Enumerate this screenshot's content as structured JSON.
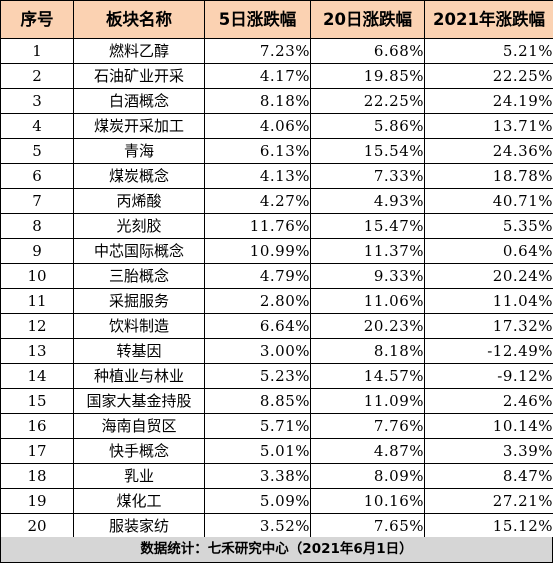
{
  "table": {
    "headers": [
      "序号",
      "板块名称",
      "5日涨跌幅",
      "20日涨跌幅",
      "2021年涨跌幅"
    ],
    "rows": [
      {
        "idx": "1",
        "name": "燃料乙醇",
        "d5": "7.23%",
        "d20": "6.68%",
        "ytd": "5.21%"
      },
      {
        "idx": "2",
        "name": "石油矿业开采",
        "d5": "4.17%",
        "d20": "19.85%",
        "ytd": "22.25%"
      },
      {
        "idx": "3",
        "name": "白酒概念",
        "d5": "8.18%",
        "d20": "22.25%",
        "ytd": "24.19%"
      },
      {
        "idx": "4",
        "name": "煤炭开采加工",
        "d5": "4.06%",
        "d20": "5.86%",
        "ytd": "13.71%"
      },
      {
        "idx": "5",
        "name": "青海",
        "d5": "6.13%",
        "d20": "15.54%",
        "ytd": "24.36%"
      },
      {
        "idx": "6",
        "name": "煤炭概念",
        "d5": "4.13%",
        "d20": "7.33%",
        "ytd": "18.78%"
      },
      {
        "idx": "7",
        "name": "丙烯酸",
        "d5": "4.27%",
        "d20": "4.93%",
        "ytd": "40.71%"
      },
      {
        "idx": "8",
        "name": "光刻胶",
        "d5": "11.76%",
        "d20": "15.47%",
        "ytd": "5.35%"
      },
      {
        "idx": "9",
        "name": "中芯国际概念",
        "d5": "10.99%",
        "d20": "11.37%",
        "ytd": "0.64%"
      },
      {
        "idx": "10",
        "name": "三胎概念",
        "d5": "4.79%",
        "d20": "9.33%",
        "ytd": "20.24%"
      },
      {
        "idx": "11",
        "name": "采掘服务",
        "d5": "2.80%",
        "d20": "11.06%",
        "ytd": "11.04%"
      },
      {
        "idx": "12",
        "name": "饮料制造",
        "d5": "6.64%",
        "d20": "20.23%",
        "ytd": "17.32%"
      },
      {
        "idx": "13",
        "name": "转基因",
        "d5": "3.00%",
        "d20": "8.18%",
        "ytd": "-12.49%"
      },
      {
        "idx": "14",
        "name": "种植业与林业",
        "d5": "5.23%",
        "d20": "14.57%",
        "ytd": "-9.12%"
      },
      {
        "idx": "15",
        "name": "国家大基金持股",
        "d5": "8.85%",
        "d20": "11.09%",
        "ytd": "2.46%"
      },
      {
        "idx": "16",
        "name": "海南自贸区",
        "d5": "5.71%",
        "d20": "7.76%",
        "ytd": "10.14%"
      },
      {
        "idx": "17",
        "name": "快手概念",
        "d5": "5.01%",
        "d20": "4.87%",
        "ytd": "3.39%"
      },
      {
        "idx": "18",
        "name": "乳业",
        "d5": "3.38%",
        "d20": "8.09%",
        "ytd": "8.47%"
      },
      {
        "idx": "19",
        "name": "煤化工",
        "d5": "5.09%",
        "d20": "10.16%",
        "ytd": "27.21%"
      },
      {
        "idx": "20",
        "name": "服装家纺",
        "d5": "3.52%",
        "d20": "7.65%",
        "ytd": "15.12%"
      }
    ]
  },
  "footer": {
    "text": "数据统计：七禾研究中心（2021年6月1日）"
  },
  "colors": {
    "header_bg": "#fbd2b2",
    "footer_bg": "#d6d6d6"
  }
}
